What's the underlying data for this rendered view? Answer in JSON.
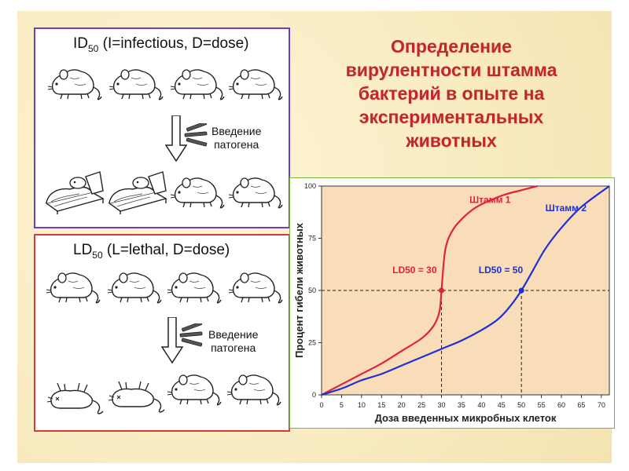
{
  "slide": {
    "headline_lines": [
      "Определение",
      "вирулентности штамма",
      "бактерий в опыте на",
      "экспериментальных",
      "животных"
    ],
    "accent_color": "#c0272d"
  },
  "panel_id": {
    "title_main": "ID",
    "title_sub": "50",
    "title_rest": " (I=infectious, D=dose)",
    "border_color": "#6a3fc7",
    "intro_line1": "Введение",
    "intro_line2": "патогена",
    "icons": [
      "mouse-icon",
      "arrow-down-icon",
      "syringe-icon",
      "sick-mouse-in-bed-icon"
    ]
  },
  "panel_ld": {
    "title_main": "LD",
    "title_sub": "50",
    "title_rest": " (L=lethal, D=dose)",
    "border_color": "#d63a3a",
    "intro_line1": "Введение",
    "intro_line2": "патогена",
    "icons": [
      "mouse-icon",
      "arrow-down-icon",
      "syringe-icon",
      "dead-mouse-icon"
    ]
  },
  "chart_data": {
    "type": "line",
    "xlabel": "Доза введенных микробных клеток",
    "ylabel": "Процент гибели животных",
    "xlim": [
      0,
      72
    ],
    "ylim": [
      0,
      100
    ],
    "x_ticks": [
      0,
      5,
      10,
      15,
      20,
      25,
      30,
      35,
      40,
      45,
      50,
      55,
      60,
      65,
      70
    ],
    "y_ticks": [
      0,
      25,
      50,
      75,
      100
    ],
    "grid": false,
    "background": "#f8ddb8",
    "series": [
      {
        "name": "Штамм 1",
        "color": "#e0223f",
        "x": [
          0,
          5,
          10,
          15,
          20,
          25,
          28,
          29.5,
          30,
          30.5,
          31,
          32,
          34,
          38,
          42,
          46,
          50,
          54
        ],
        "y": [
          0,
          5,
          10,
          15,
          21,
          27,
          33,
          40,
          50,
          62,
          70,
          76,
          82,
          89,
          93,
          96,
          98,
          100
        ]
      },
      {
        "name": "Штамм 2",
        "color": "#1e2ed8",
        "x": [
          0,
          5,
          10,
          15,
          20,
          25,
          30,
          35,
          40,
          44,
          47,
          50,
          53,
          56,
          60,
          65,
          72
        ],
        "y": [
          0,
          3,
          7,
          10,
          14,
          18,
          22,
          26,
          31,
          36,
          42,
          50,
          60,
          70,
          80,
          90,
          100
        ]
      }
    ],
    "markers": [
      {
        "label": "LD50 =  30",
        "x": 30,
        "y": 50,
        "color": "#e0223f"
      },
      {
        "label": "LD50 = 50",
        "x": 50,
        "y": 50,
        "color": "#1e2ed8"
      }
    ]
  }
}
